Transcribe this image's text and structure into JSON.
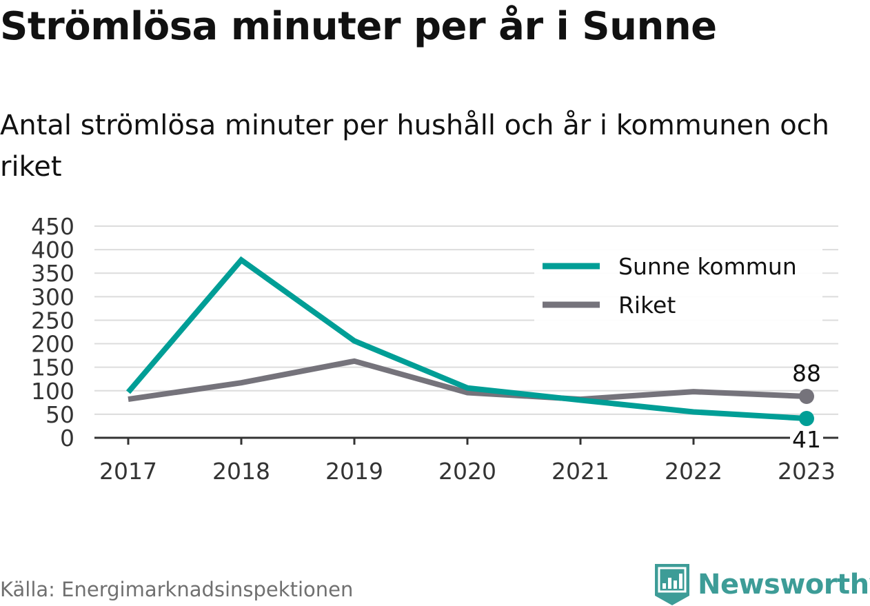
{
  "title": "Strömlösa minuter per år i Sunne",
  "subtitle": "Antal strömlösa minuter per hushåll och år i kommunen och riket",
  "source": "Källa: Energimarknadsinspektionen",
  "brand": {
    "name": "Newsworthy",
    "color": "#3d9c97",
    "icon": "newsworthy-logo-icon"
  },
  "chart_data": {
    "type": "line",
    "categories": [
      "2017",
      "2018",
      "2019",
      "2020",
      "2021",
      "2022",
      "2023"
    ],
    "series": [
      {
        "name": "Sunne kommun",
        "color": "#009e96",
        "values": [
          97,
          378,
          206,
          106,
          80,
          55,
          41
        ],
        "end_label": "41"
      },
      {
        "name": "Riket",
        "color": "#75737b",
        "values": [
          82,
          117,
          163,
          96,
          82,
          98,
          88
        ],
        "end_label": "88"
      }
    ],
    "ylim": [
      0,
      450
    ],
    "yticks": [
      "0",
      "50",
      "100",
      "150",
      "200",
      "250",
      "300",
      "350",
      "400",
      "450"
    ],
    "xlabel": "",
    "ylabel": "",
    "grid": true,
    "legend_position": "top-right"
  }
}
